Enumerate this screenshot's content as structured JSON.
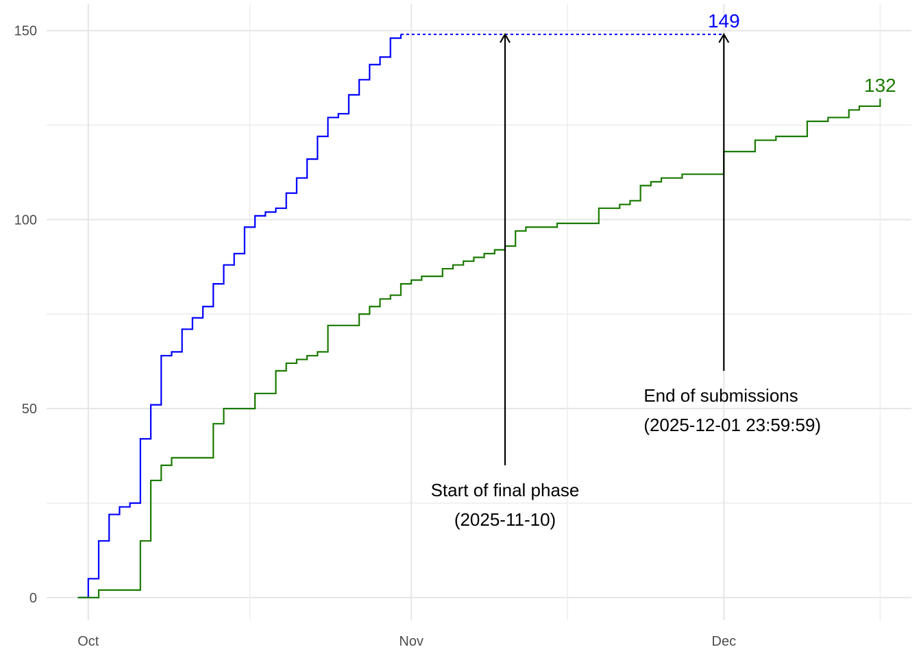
{
  "chart_data": {
    "type": "line",
    "step": true,
    "grid": true,
    "legend": "none",
    "xlim": [
      "2025-09-27",
      "2025-12-19"
    ],
    "ylim": [
      -6,
      157
    ],
    "x_ticks": [
      {
        "date": "2025-10-01",
        "label": "Oct"
      },
      {
        "date": "2025-11-01",
        "label": "Nov"
      },
      {
        "date": "2025-12-01",
        "label": "Dec"
      }
    ],
    "y_ticks": [
      0,
      50,
      100,
      150
    ],
    "series": [
      {
        "color": "#0000ff",
        "x": [
          "2025-09-30",
          "2025-10-01",
          "2025-10-02",
          "2025-10-03",
          "2025-10-04",
          "2025-10-05",
          "2025-10-06",
          "2025-10-07",
          "2025-10-08",
          "2025-10-09",
          "2025-10-10",
          "2025-10-11",
          "2025-10-12",
          "2025-10-13",
          "2025-10-14",
          "2025-10-15",
          "2025-10-16",
          "2025-10-17",
          "2025-10-18",
          "2025-10-19",
          "2025-10-20",
          "2025-10-21",
          "2025-10-22",
          "2025-10-23",
          "2025-10-24",
          "2025-10-25",
          "2025-10-26",
          "2025-10-27",
          "2025-10-28",
          "2025-10-29",
          "2025-10-30",
          "2025-10-31"
        ],
        "y": [
          0,
          5,
          15,
          22,
          24,
          25,
          42,
          51,
          64,
          65,
          71,
          74,
          77,
          83,
          88,
          91,
          98,
          101,
          102,
          103,
          107,
          111,
          116,
          122,
          127,
          128,
          133,
          137,
          141,
          143,
          148,
          149
        ],
        "extension": {
          "from": "2025-10-31",
          "to": "2025-12-01",
          "value": 149,
          "style": "dotted"
        },
        "end_label": "149"
      },
      {
        "color": "#1a7a00",
        "x": [
          "2025-09-30",
          "2025-10-02",
          "2025-10-06",
          "2025-10-07",
          "2025-10-08",
          "2025-10-09",
          "2025-10-13",
          "2025-10-14",
          "2025-10-15",
          "2025-10-17",
          "2025-10-19",
          "2025-10-20",
          "2025-10-21",
          "2025-10-22",
          "2025-10-23",
          "2025-10-24",
          "2025-10-27",
          "2025-10-28",
          "2025-10-29",
          "2025-10-30",
          "2025-10-31",
          "2025-11-01",
          "2025-11-02",
          "2025-11-04",
          "2025-11-05",
          "2025-11-06",
          "2025-11-07",
          "2025-11-08",
          "2025-11-09",
          "2025-11-10",
          "2025-11-11",
          "2025-11-12",
          "2025-11-15",
          "2025-11-19",
          "2025-11-21",
          "2025-11-22",
          "2025-11-23",
          "2025-11-24",
          "2025-11-25",
          "2025-11-27",
          "2025-12-01",
          "2025-12-04",
          "2025-12-06",
          "2025-12-09",
          "2025-12-11",
          "2025-12-13",
          "2025-12-14",
          "2025-12-16"
        ],
        "y": [
          0,
          2,
          15,
          31,
          35,
          37,
          46,
          50,
          50,
          54,
          60,
          62,
          63,
          64,
          65,
          72,
          75,
          77,
          79,
          80,
          83,
          84,
          85,
          87,
          88,
          89,
          90,
          91,
          92,
          93,
          97,
          98,
          99,
          103,
          104,
          105,
          109,
          110,
          111,
          112,
          118,
          121,
          122,
          126,
          127,
          129,
          130,
          132
        ],
        "end_label": "132"
      }
    ],
    "annotations": [
      {
        "date": "2025-11-10",
        "arrow_from": 35,
        "arrow_to": 149,
        "lines": [
          "Start of final phase",
          "(2025-11-10)"
        ]
      },
      {
        "date": "2025-12-01",
        "arrow_from": 60,
        "arrow_to": 149,
        "lines": [
          "End of submissions",
          "(2025-12-01 23:59:59)"
        ]
      }
    ]
  }
}
